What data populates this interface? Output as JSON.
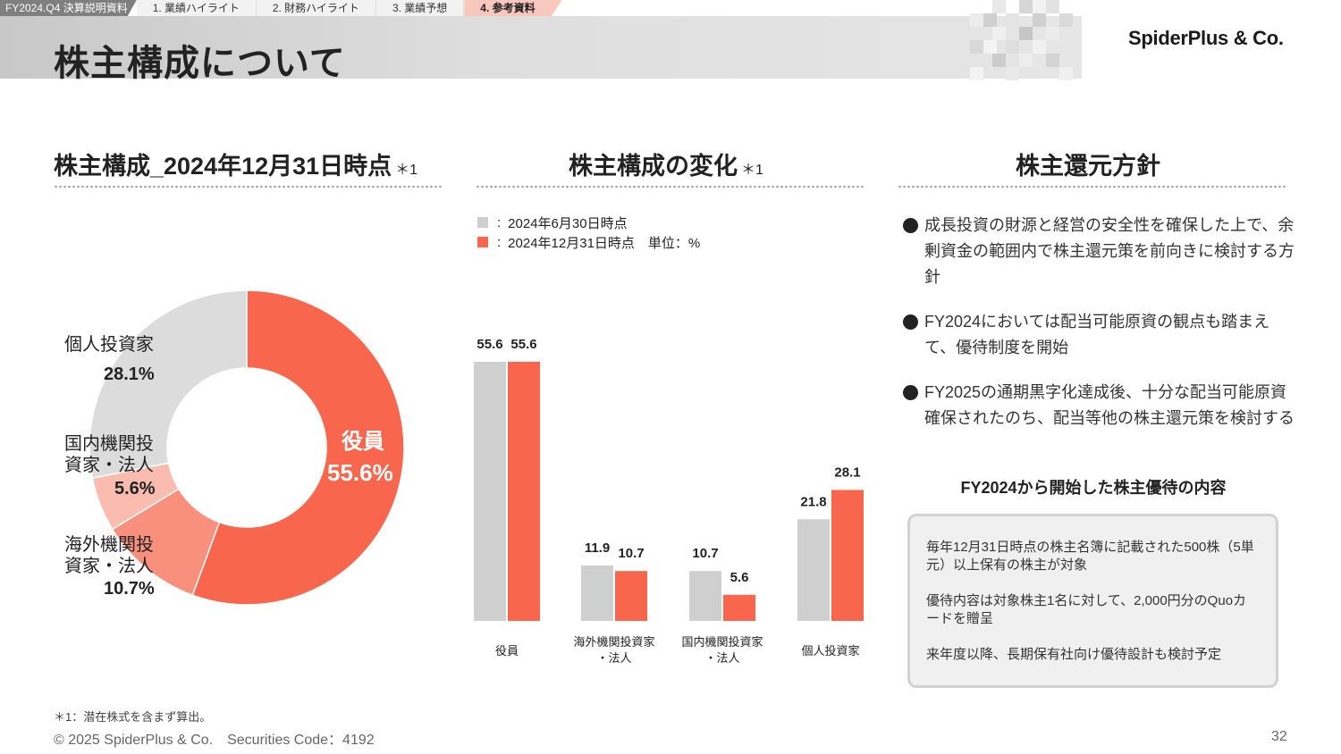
{
  "nav": {
    "doc": "FY2024.Q4 決算説明資料",
    "tabs": [
      "1. 業績ハイライト",
      "2. 財務ハイライト",
      "3. 業績予想",
      "4. 参考資料"
    ]
  },
  "title": "株主構成について",
  "logo": "SpiderPlus & Co.",
  "left": {
    "heading": "株主構成_2024年12月31日時点",
    "note": "＊1"
  },
  "middle": {
    "heading": "株主構成の変化",
    "note": "＊1",
    "legend": [
      {
        "colon": ":",
        "label": "2024年6月30日時点"
      },
      {
        "colon": ":",
        "label": "2024年12月31日時点　単位：%"
      }
    ]
  },
  "right": {
    "heading": "株主還元方針",
    "bullets": [
      "成長投資の財源と経営の安全性を確保した上で、余剰資金の範囲内で株主還元策を前向きに検討する方針",
      "FY2024においては配当可能原資の観点も踏まえて、優待制度を開始",
      "FY2025の通期黒字化達成後、十分な配当可能原資確保されたのち、配当等他の株主還元策を検討する"
    ],
    "benefit_title": "FY2024から開始した株主優待の内容",
    "benefit_items": [
      "毎年12月31日時点の株主名簿に記載された500株（5単元）以上保有の株主が対象",
      "優待内容は対象株主1名に対して、2,000円分のQuoカードを贈呈",
      "来年度以降、長期保有社向け優待設計も検討予定"
    ]
  },
  "colors": {
    "accent": "#f8664d",
    "gray": "#cfcfcf",
    "salmon": "#f98f7d",
    "pink": "#fbbcb0",
    "light_gray": "#dcdcdc"
  },
  "chart_data": [
    {
      "type": "pie",
      "title": "株主構成_2024年12月31日時点",
      "slices": [
        {
          "name": "役員",
          "value": 55.6,
          "label": "55.6%"
        },
        {
          "name": "海外機関投資家・法人",
          "value": 10.7,
          "label": "10.7%"
        },
        {
          "name": "国内機関投資家・法人",
          "value": 5.6,
          "label": "5.6%"
        },
        {
          "name": "個人投資家",
          "value": 28.1,
          "label": "28.1%"
        }
      ],
      "label_lines": {
        "individual": [
          "個人投資家"
        ],
        "domestic": [
          "国内機関投",
          "資家・法人"
        ],
        "foreign": [
          "海外機関投",
          "資家・法人"
        ]
      }
    },
    {
      "type": "bar",
      "title": "株主構成の変化",
      "unit": "%",
      "categories": [
        [
          "役員"
        ],
        [
          "海外機関投資家",
          "・法人"
        ],
        [
          "国内機関投資家",
          "・法人"
        ],
        [
          "個人投資家"
        ]
      ],
      "series": [
        {
          "name": "2024年6月30日時点",
          "values": [
            55.6,
            11.9,
            10.7,
            21.8
          ]
        },
        {
          "name": "2024年12月31日時点",
          "values": [
            55.6,
            10.7,
            5.6,
            28.1
          ]
        }
      ],
      "ylim": [
        0,
        55.6
      ]
    }
  ],
  "footer": {
    "footnote": "＊1：潜在株式を含まず算出。",
    "copyright": "© 2025 SpiderPlus & Co.　Securities Code：4192",
    "page": "32"
  }
}
